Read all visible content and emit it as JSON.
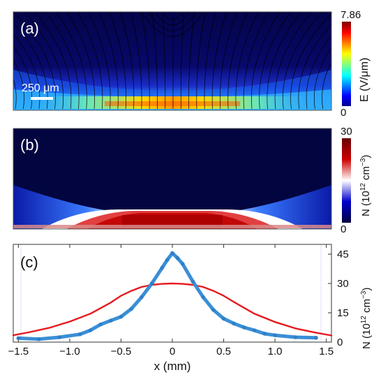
{
  "panels": {
    "a": {
      "label": "(a)",
      "scalebar": "250 μm",
      "cbar": {
        "max": "7.86",
        "min": "0",
        "title": "E (V/μm)"
      }
    },
    "b": {
      "label": "(b)",
      "cbar": {
        "max": "30",
        "min": "0",
        "title_prefix": "N (10",
        "title_sup1": "12",
        "title_mid": " cm",
        "title_sup2": "−3",
        "title_suffix": ")"
      }
    },
    "c": {
      "label": "(c)"
    }
  },
  "colors": {
    "red_curve": "#e8191e",
    "blue_curve": "#3a8fd6",
    "field_bg": "#06064e",
    "density_bg": "#02053f"
  },
  "chart_data": {
    "type": "line",
    "xlabel": "x (mm)",
    "ylabel_prefix": "N (10",
    "ylabel_sup1": "12",
    "ylabel_mid": " cm",
    "ylabel_sup2": "−3",
    "ylabel_suffix": ")",
    "xlim": [
      -1.55,
      1.55
    ],
    "ylim": [
      0,
      50
    ],
    "xticks": [
      "−1.5",
      "−1.0",
      "−0.5",
      "0",
      "0.5",
      "1.0",
      "1.5"
    ],
    "xtick_values": [
      -1.5,
      -1.0,
      -0.5,
      0,
      0.5,
      1.0,
      1.5
    ],
    "yticks": [
      "0",
      "15",
      "30",
      "45"
    ],
    "ytick_values": [
      0,
      15,
      30,
      45
    ],
    "series": [
      {
        "color": "#e8191e",
        "x": [
          -1.55,
          -1.4,
          -1.2,
          -1.0,
          -0.8,
          -0.6,
          -0.5,
          -0.4,
          -0.3,
          -0.2,
          -0.1,
          0,
          0.1,
          0.2,
          0.3,
          0.4,
          0.5,
          0.6,
          0.8,
          1.0,
          1.2,
          1.4,
          1.55
        ],
        "y": [
          3.5,
          5.0,
          7.3,
          10.5,
          14.5,
          20.2,
          23.7,
          26.2,
          28.2,
          29.3,
          29.8,
          30.0,
          29.8,
          29.3,
          28.2,
          26.2,
          23.7,
          20.5,
          14.5,
          10.3,
          7.0,
          4.8,
          3.4
        ]
      },
      {
        "color": "#3a8fd6",
        "x": [
          -1.5,
          -1.3,
          -1.1,
          -0.9,
          -0.8,
          -0.7,
          -0.6,
          -0.5,
          -0.4,
          -0.3,
          -0.2,
          -0.1,
          -0.05,
          0,
          0.05,
          0.1,
          0.2,
          0.3,
          0.4,
          0.5,
          0.6,
          0.7,
          0.8,
          0.9,
          1.0,
          1.2,
          1.4
        ],
        "y": [
          2.0,
          1.5,
          2.5,
          4.0,
          6.0,
          9.0,
          11.0,
          13.0,
          17.0,
          23.0,
          30.0,
          38.0,
          42.0,
          45.5,
          43.0,
          40.0,
          31.0,
          23.0,
          16.5,
          12.0,
          9.5,
          7.5,
          6.0,
          4.3,
          3.5,
          2.5,
          2.2
        ]
      }
    ]
  }
}
